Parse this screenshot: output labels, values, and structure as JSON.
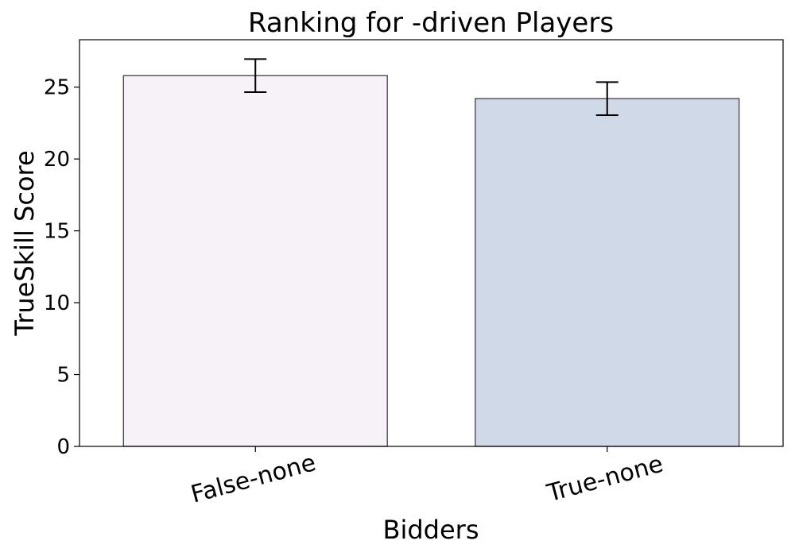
{
  "chart_data": {
    "type": "bar",
    "title": "Ranking for -driven Players",
    "xlabel": "Bidders",
    "ylabel": "TrueSkill Score",
    "categories": [
      "False-none",
      "True-none"
    ],
    "values": [
      25.8,
      24.2
    ],
    "error": [
      1.15,
      1.15
    ],
    "ylim": [
      0,
      28.3
    ],
    "yticks": [
      0,
      5,
      10,
      15,
      20,
      25
    ],
    "grid": false,
    "colors": [
      "#f6f2f8",
      "#d0d9e8"
    ],
    "edge_color": "#404040",
    "x_tick_rotation_deg": -15
  }
}
